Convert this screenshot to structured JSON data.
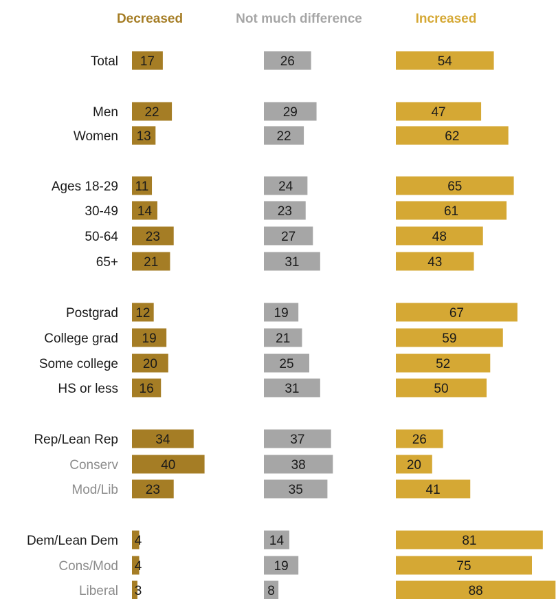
{
  "colors": {
    "decreased": "#a57d25",
    "not_much": "#a6a6a6",
    "increased": "#d5a834",
    "label_main": "#1a1a1a",
    "label_sub": "#8c8c8c"
  },
  "chart_data": {
    "type": "bar",
    "orientation": "horizontal",
    "columns": [
      "Decreased",
      "Not much difference",
      "Increased"
    ],
    "categories": [
      "Total",
      "Men",
      "Women",
      "Ages 18-29",
      "30-49",
      "50-64",
      "65+",
      "Postgrad",
      "College grad",
      "Some college",
      "HS or less",
      "Rep/Lean Rep",
      "Conserv",
      "Mod/Lib",
      "Dem/Lean Dem",
      "Cons/Mod",
      "Liberal"
    ],
    "subgroup": [
      false,
      false,
      false,
      false,
      false,
      false,
      false,
      false,
      false,
      false,
      false,
      false,
      true,
      true,
      false,
      true,
      true
    ],
    "series": [
      {
        "name": "Decreased",
        "values": [
          17,
          22,
          13,
          11,
          14,
          23,
          21,
          12,
          19,
          20,
          16,
          34,
          40,
          23,
          4,
          4,
          3
        ]
      },
      {
        "name": "Not much difference",
        "values": [
          26,
          29,
          22,
          24,
          23,
          27,
          31,
          19,
          21,
          25,
          31,
          37,
          38,
          35,
          14,
          19,
          8
        ]
      },
      {
        "name": "Increased",
        "values": [
          54,
          47,
          62,
          65,
          61,
          48,
          43,
          67,
          59,
          52,
          50,
          26,
          20,
          41,
          81,
          75,
          88
        ]
      }
    ],
    "xlim": [
      0,
      100
    ],
    "legend": "top",
    "grid": false
  }
}
